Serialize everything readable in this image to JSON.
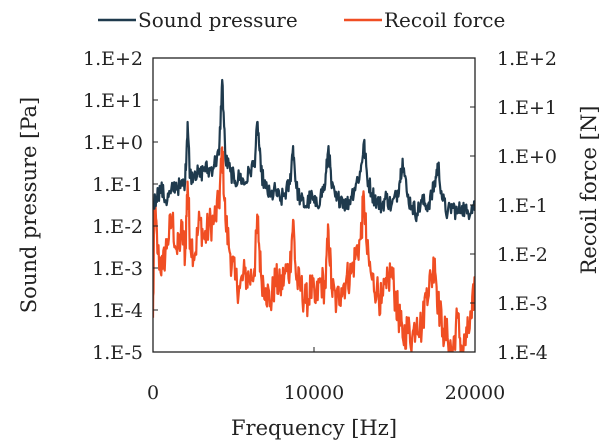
{
  "chart_data": {
    "type": "line",
    "title": "",
    "xlabel": "Frequency [Hz]",
    "ylabel_left": "Sound pressure [Pa]",
    "ylabel_right": "Recoil force [N]",
    "xlim": [
      0,
      20000
    ],
    "x_ticks": [
      0,
      10000,
      20000
    ],
    "x_tick_labels": [
      "0",
      "10000",
      "20000"
    ],
    "y_left_scale": "log",
    "y_left_lim": [
      1e-05,
      100
    ],
    "y_left_tick_labels": [
      "1.E+2",
      "1.E+1",
      "1.E+0",
      "1.E-1",
      "1.E-2",
      "1.E-3",
      "1.E-4",
      "1.E-5"
    ],
    "y_right_scale": "log",
    "y_right_lim": [
      0.0001,
      100
    ],
    "y_right_tick_labels": [
      "1.E+2",
      "1.E+1",
      "1.E+0",
      "1.E-1",
      "1.E-2",
      "1.E-3",
      "1.E-4"
    ],
    "grid": false,
    "legend_position": "top",
    "series": [
      {
        "name": "Sound pressure",
        "axis": "left",
        "color": "#1f3a4d",
        "x": [
          0,
          200,
          500,
          800,
          1100,
          1400,
          1700,
          2000,
          2150,
          2300,
          2600,
          2900,
          3200,
          3500,
          3800,
          4100,
          4300,
          4500,
          4800,
          5100,
          5400,
          5700,
          6000,
          6300,
          6500,
          6700,
          7000,
          7300,
          7600,
          7900,
          8200,
          8500,
          8700,
          8900,
          9200,
          9500,
          9800,
          10100,
          10400,
          10700,
          10900,
          11100,
          11400,
          11700,
          12000,
          12300,
          12600,
          12900,
          13100,
          13300,
          13600,
          13900,
          14200,
          14500,
          14800,
          15100,
          15300,
          15500,
          15800,
          16100,
          16400,
          16700,
          17000,
          17300,
          17500,
          17700,
          18000,
          18300,
          18600,
          18900,
          19200,
          19500,
          19800,
          20000
        ],
        "values": [
          0.03,
          0.05,
          0.08,
          0.04,
          0.06,
          0.1,
          0.08,
          0.12,
          3.0,
          0.15,
          0.2,
          0.15,
          0.25,
          0.2,
          0.3,
          0.5,
          30.0,
          0.4,
          0.2,
          0.12,
          0.15,
          0.1,
          0.2,
          0.3,
          3.0,
          0.2,
          0.08,
          0.05,
          0.07,
          0.04,
          0.06,
          0.1,
          0.8,
          0.08,
          0.04,
          0.03,
          0.05,
          0.03,
          0.05,
          0.1,
          0.8,
          0.08,
          0.04,
          0.05,
          0.03,
          0.05,
          0.1,
          0.2,
          1.0,
          0.15,
          0.06,
          0.04,
          0.03,
          0.05,
          0.03,
          0.05,
          0.1,
          0.4,
          0.05,
          0.03,
          0.02,
          0.04,
          0.03,
          0.05,
          0.1,
          0.3,
          0.04,
          0.02,
          0.03,
          0.02,
          0.03,
          0.02,
          0.03,
          0.03
        ]
      },
      {
        "name": "Recoil force",
        "axis": "right",
        "color": "#f04e23",
        "x": [
          0,
          100,
          300,
          600,
          900,
          1200,
          1500,
          1800,
          2000,
          2150,
          2300,
          2600,
          2900,
          3200,
          3500,
          3800,
          4100,
          4300,
          4500,
          4800,
          5100,
          5400,
          5700,
          6000,
          6300,
          6500,
          6700,
          7000,
          7300,
          7600,
          7900,
          8200,
          8500,
          8700,
          8900,
          9200,
          9500,
          9800,
          10100,
          10400,
          10700,
          10900,
          11100,
          11400,
          11700,
          12000,
          12300,
          12600,
          12900,
          13100,
          13300,
          13600,
          13900,
          14200,
          14500,
          14800,
          15100,
          15300,
          15500,
          15800,
          16100,
          16400,
          16700,
          17000,
          17300,
          17500,
          17700,
          18000,
          18300,
          18600,
          18900,
          19200,
          19500,
          19800,
          20000
        ],
        "values": [
          0.0005,
          0.1,
          0.01,
          0.005,
          0.02,
          0.05,
          0.01,
          0.03,
          0.01,
          0.3,
          0.02,
          0.01,
          0.05,
          0.02,
          0.04,
          0.05,
          0.1,
          1.5,
          0.05,
          0.01,
          0.003,
          0.002,
          0.004,
          0.003,
          0.005,
          0.05,
          0.004,
          0.002,
          0.001,
          0.003,
          0.002,
          0.004,
          0.005,
          0.05,
          0.003,
          0.002,
          0.001,
          0.002,
          0.001,
          0.003,
          0.002,
          0.03,
          0.002,
          0.001,
          0.002,
          0.003,
          0.004,
          0.01,
          0.02,
          0.15,
          0.01,
          0.003,
          0.002,
          0.001,
          0.002,
          0.005,
          0.001,
          0.0005,
          0.0002,
          0.0003,
          0.0002,
          0.0005,
          0.0003,
          0.002,
          0.003,
          0.008,
          0.001,
          0.0003,
          0.0002,
          0.0001,
          0.0005,
          0.0001,
          0.0002,
          0.0005,
          0.003
        ]
      }
    ]
  }
}
